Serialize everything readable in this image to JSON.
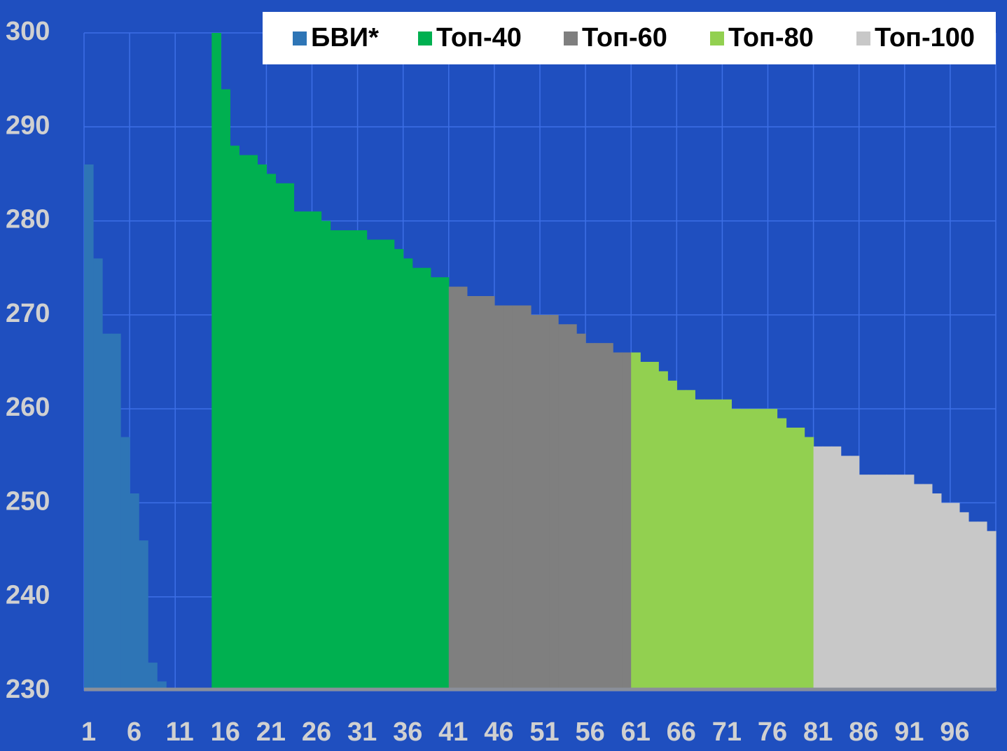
{
  "chart_data": {
    "type": "bar",
    "stacked": false,
    "categories": [
      1,
      null,
      null,
      null,
      null,
      6,
      null,
      null,
      null,
      null,
      11,
      null,
      null,
      null,
      null,
      16,
      null,
      null,
      null,
      null,
      21,
      null,
      null,
      null,
      null,
      26,
      null,
      null,
      null,
      null,
      31,
      null,
      null,
      null,
      null,
      36,
      null,
      null,
      null,
      null,
      41,
      null,
      null,
      null,
      null,
      46,
      null,
      null,
      null,
      null,
      51,
      null,
      null,
      null,
      null,
      56,
      null,
      null,
      null,
      null,
      61,
      null,
      null,
      null,
      null,
      66,
      null,
      null,
      null,
      null,
      71,
      null,
      null,
      null,
      null,
      76,
      null,
      null,
      null,
      null,
      81,
      null,
      null,
      null,
      null,
      86,
      null,
      null,
      null,
      null,
      91,
      null,
      null,
      null,
      null,
      96,
      null,
      null,
      null,
      null
    ],
    "series": [
      {
        "name": "БВИ*",
        "color": "#2e75b6",
        "values": [
          286,
          276,
          268,
          268,
          257,
          251,
          246,
          233,
          231,
          230,
          230,
          230,
          230,
          230,
          null,
          null,
          null,
          null,
          null,
          null,
          null,
          null,
          null,
          null,
          null,
          null,
          null,
          null,
          null,
          null,
          null,
          null,
          null,
          null,
          null,
          null,
          null,
          null,
          null,
          null,
          null,
          null,
          null,
          null,
          null,
          null,
          null,
          null,
          null,
          null,
          null,
          null,
          null,
          null,
          null,
          null,
          null,
          null,
          null,
          null,
          null,
          null,
          null,
          null,
          null,
          null,
          null,
          null,
          null,
          null,
          null,
          null,
          null,
          null,
          null,
          null,
          null,
          null,
          null,
          null,
          null,
          null,
          null,
          null,
          null,
          null,
          null,
          null,
          null,
          null,
          null,
          null,
          null,
          null,
          null,
          null,
          null,
          null,
          null,
          null
        ]
      },
      {
        "name": "Топ-40",
        "color": "#00b050",
        "values": [
          null,
          null,
          null,
          null,
          null,
          null,
          null,
          null,
          null,
          null,
          null,
          null,
          null,
          null,
          300,
          294,
          288,
          287,
          287,
          286,
          285,
          284,
          284,
          281,
          281,
          281,
          280,
          279,
          279,
          279,
          279,
          278,
          278,
          278,
          277,
          276,
          275,
          275,
          274,
          274,
          null,
          null,
          null,
          null,
          null,
          null,
          null,
          null,
          null,
          null,
          null,
          null,
          null,
          null,
          null,
          null,
          null,
          null,
          null,
          null,
          null,
          null,
          null,
          null,
          null,
          null,
          null,
          null,
          null,
          null,
          null,
          null,
          null,
          null,
          null,
          null,
          null,
          null,
          null,
          null,
          null,
          null,
          null,
          null,
          null,
          null,
          null,
          null,
          null,
          null,
          null,
          null,
          null,
          null,
          null,
          null,
          null,
          null,
          null,
          null
        ]
      },
      {
        "name": "Топ-60",
        "color": "#7f7f7f",
        "values": [
          null,
          null,
          null,
          null,
          null,
          null,
          null,
          null,
          null,
          null,
          null,
          null,
          null,
          null,
          null,
          null,
          null,
          null,
          null,
          null,
          null,
          null,
          null,
          null,
          null,
          null,
          null,
          null,
          null,
          null,
          null,
          null,
          null,
          null,
          null,
          null,
          null,
          null,
          null,
          null,
          273,
          273,
          272,
          272,
          272,
          271,
          271,
          271,
          271,
          270,
          270,
          270,
          269,
          269,
          268,
          267,
          267,
          267,
          266,
          266,
          null,
          null,
          null,
          null,
          null,
          null,
          null,
          null,
          null,
          null,
          null,
          null,
          null,
          null,
          null,
          null,
          null,
          null,
          null,
          null,
          null,
          null,
          null,
          null,
          null,
          null,
          null,
          null,
          null,
          null,
          null,
          null,
          null,
          null,
          null,
          null,
          null,
          null,
          null,
          null
        ]
      },
      {
        "name": "Топ-80",
        "color": "#92d050",
        "values": [
          null,
          null,
          null,
          null,
          null,
          null,
          null,
          null,
          null,
          null,
          null,
          null,
          null,
          null,
          null,
          null,
          null,
          null,
          null,
          null,
          null,
          null,
          null,
          null,
          null,
          null,
          null,
          null,
          null,
          null,
          null,
          null,
          null,
          null,
          null,
          null,
          null,
          null,
          null,
          null,
          null,
          null,
          null,
          null,
          null,
          null,
          null,
          null,
          null,
          null,
          null,
          null,
          null,
          null,
          null,
          null,
          null,
          null,
          null,
          null,
          266,
          265,
          265,
          264,
          263,
          262,
          262,
          261,
          261,
          261,
          261,
          260,
          260,
          260,
          260,
          260,
          259,
          258,
          258,
          257,
          null,
          null,
          null,
          null,
          null,
          null,
          null,
          null,
          null,
          null,
          null,
          null,
          null,
          null,
          null,
          null,
          null,
          null,
          null,
          null
        ]
      },
      {
        "name": "Топ-100",
        "color": "#c8c8c8",
        "values": [
          null,
          null,
          null,
          null,
          null,
          null,
          null,
          null,
          null,
          null,
          null,
          null,
          null,
          null,
          null,
          null,
          null,
          null,
          null,
          null,
          null,
          null,
          null,
          null,
          null,
          null,
          null,
          null,
          null,
          null,
          null,
          null,
          null,
          null,
          null,
          null,
          null,
          null,
          null,
          null,
          null,
          null,
          null,
          null,
          null,
          null,
          null,
          null,
          null,
          null,
          null,
          null,
          null,
          null,
          null,
          null,
          null,
          null,
          null,
          null,
          null,
          null,
          null,
          null,
          null,
          null,
          null,
          null,
          null,
          null,
          null,
          null,
          null,
          null,
          null,
          null,
          null,
          null,
          null,
          null,
          256,
          256,
          256,
          255,
          255,
          253,
          253,
          253,
          253,
          253,
          253,
          252,
          252,
          251,
          250,
          250,
          249,
          248,
          248,
          247
        ]
      }
    ],
    "ylim": [
      230,
      300
    ],
    "yticks": [
      230,
      240,
      250,
      260,
      270,
      280,
      290,
      300
    ],
    "grid": true,
    "legend": "top-right"
  }
}
